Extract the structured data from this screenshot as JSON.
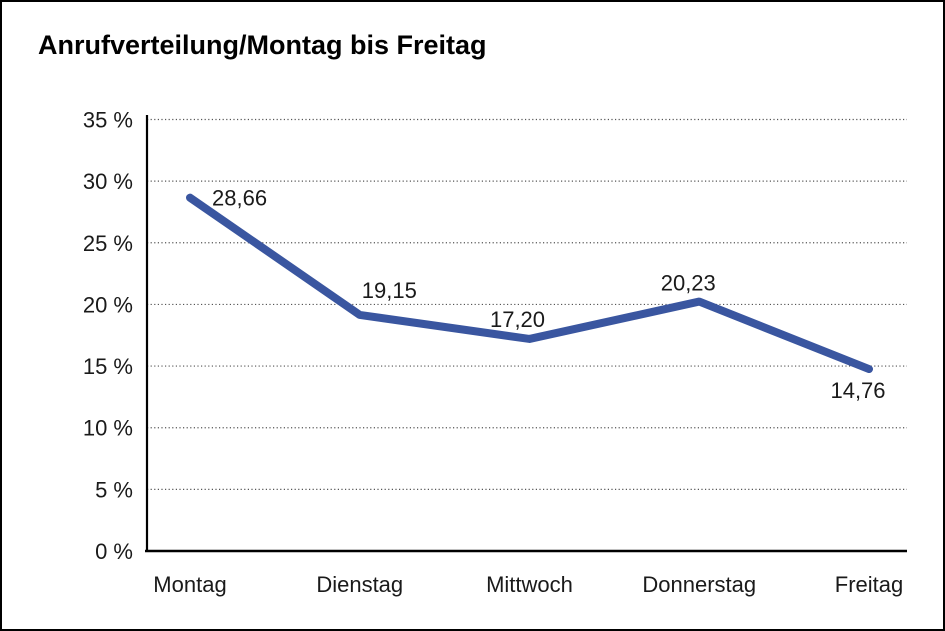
{
  "title": "Anrufverteilung/Montag bis Freitag",
  "chart_data": {
    "type": "line",
    "title": "Anrufverteilung/Montag bis Freitag",
    "categories": [
      "Montag",
      "Dienstag",
      "Mittwoch",
      "Donnerstag",
      "Freitag"
    ],
    "values": [
      28.66,
      19.15,
      17.2,
      20.23,
      14.76
    ],
    "value_labels": [
      "28,66",
      "19,15",
      "17,20",
      "20,23",
      "14,76"
    ],
    "xlabel": "",
    "ylabel": "",
    "ylim": [
      0,
      35
    ],
    "ytick_step": 5,
    "ytick_labels": [
      "0 %",
      "5 %",
      "10 %",
      "15 %",
      "20 %",
      "25 %",
      "30 %",
      "35 %"
    ],
    "grid": "horizontal-dotted",
    "legend": "none",
    "line_color": "#3A56A0",
    "grid_color": "#555555",
    "axis_color": "#000000",
    "text_color": "#1a1a1a",
    "background_color": "#FFFFFF"
  }
}
